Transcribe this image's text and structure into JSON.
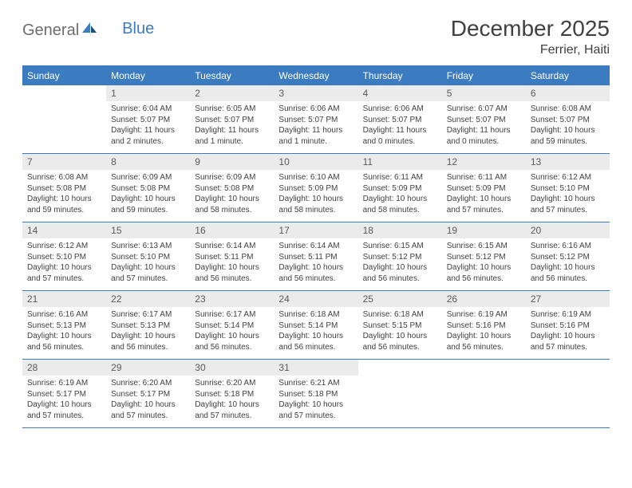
{
  "brand": {
    "general": "General",
    "blue": "Blue"
  },
  "title": "December 2025",
  "location": "Ferrier, Haiti",
  "colors": {
    "header_bg": "#3b7bbf",
    "header_text": "#ffffff",
    "daynum_bg": "#ebebeb",
    "daynum_text": "#5a5a5a",
    "body_text": "#404040",
    "rule": "#3b7bbf",
    "page_bg": "#ffffff",
    "logo_gray": "#6d6d6d",
    "logo_blue": "#3b7bbf"
  },
  "typography": {
    "title_fontsize": 28,
    "location_fontsize": 16,
    "dayheader_fontsize": 12,
    "daynum_fontsize": 12,
    "body_fontsize": 10
  },
  "layout": {
    "columns": 7,
    "rows": 5,
    "first_day_column": 1
  },
  "day_headers": [
    "Sunday",
    "Monday",
    "Tuesday",
    "Wednesday",
    "Thursday",
    "Friday",
    "Saturday"
  ],
  "days": [
    {
      "n": 1,
      "sunrise": "6:04 AM",
      "sunset": "5:07 PM",
      "daylight": "11 hours and 2 minutes."
    },
    {
      "n": 2,
      "sunrise": "6:05 AM",
      "sunset": "5:07 PM",
      "daylight": "11 hours and 1 minute."
    },
    {
      "n": 3,
      "sunrise": "6:06 AM",
      "sunset": "5:07 PM",
      "daylight": "11 hours and 1 minute."
    },
    {
      "n": 4,
      "sunrise": "6:06 AM",
      "sunset": "5:07 PM",
      "daylight": "11 hours and 0 minutes."
    },
    {
      "n": 5,
      "sunrise": "6:07 AM",
      "sunset": "5:07 PM",
      "daylight": "11 hours and 0 minutes."
    },
    {
      "n": 6,
      "sunrise": "6:08 AM",
      "sunset": "5:07 PM",
      "daylight": "10 hours and 59 minutes."
    },
    {
      "n": 7,
      "sunrise": "6:08 AM",
      "sunset": "5:08 PM",
      "daylight": "10 hours and 59 minutes."
    },
    {
      "n": 8,
      "sunrise": "6:09 AM",
      "sunset": "5:08 PM",
      "daylight": "10 hours and 59 minutes."
    },
    {
      "n": 9,
      "sunrise": "6:09 AM",
      "sunset": "5:08 PM",
      "daylight": "10 hours and 58 minutes."
    },
    {
      "n": 10,
      "sunrise": "6:10 AM",
      "sunset": "5:09 PM",
      "daylight": "10 hours and 58 minutes."
    },
    {
      "n": 11,
      "sunrise": "6:11 AM",
      "sunset": "5:09 PM",
      "daylight": "10 hours and 58 minutes."
    },
    {
      "n": 12,
      "sunrise": "6:11 AM",
      "sunset": "5:09 PM",
      "daylight": "10 hours and 57 minutes."
    },
    {
      "n": 13,
      "sunrise": "6:12 AM",
      "sunset": "5:10 PM",
      "daylight": "10 hours and 57 minutes."
    },
    {
      "n": 14,
      "sunrise": "6:12 AM",
      "sunset": "5:10 PM",
      "daylight": "10 hours and 57 minutes."
    },
    {
      "n": 15,
      "sunrise": "6:13 AM",
      "sunset": "5:10 PM",
      "daylight": "10 hours and 57 minutes."
    },
    {
      "n": 16,
      "sunrise": "6:14 AM",
      "sunset": "5:11 PM",
      "daylight": "10 hours and 56 minutes."
    },
    {
      "n": 17,
      "sunrise": "6:14 AM",
      "sunset": "5:11 PM",
      "daylight": "10 hours and 56 minutes."
    },
    {
      "n": 18,
      "sunrise": "6:15 AM",
      "sunset": "5:12 PM",
      "daylight": "10 hours and 56 minutes."
    },
    {
      "n": 19,
      "sunrise": "6:15 AM",
      "sunset": "5:12 PM",
      "daylight": "10 hours and 56 minutes."
    },
    {
      "n": 20,
      "sunrise": "6:16 AM",
      "sunset": "5:12 PM",
      "daylight": "10 hours and 56 minutes."
    },
    {
      "n": 21,
      "sunrise": "6:16 AM",
      "sunset": "5:13 PM",
      "daylight": "10 hours and 56 minutes."
    },
    {
      "n": 22,
      "sunrise": "6:17 AM",
      "sunset": "5:13 PM",
      "daylight": "10 hours and 56 minutes."
    },
    {
      "n": 23,
      "sunrise": "6:17 AM",
      "sunset": "5:14 PM",
      "daylight": "10 hours and 56 minutes."
    },
    {
      "n": 24,
      "sunrise": "6:18 AM",
      "sunset": "5:14 PM",
      "daylight": "10 hours and 56 minutes."
    },
    {
      "n": 25,
      "sunrise": "6:18 AM",
      "sunset": "5:15 PM",
      "daylight": "10 hours and 56 minutes."
    },
    {
      "n": 26,
      "sunrise": "6:19 AM",
      "sunset": "5:16 PM",
      "daylight": "10 hours and 56 minutes."
    },
    {
      "n": 27,
      "sunrise": "6:19 AM",
      "sunset": "5:16 PM",
      "daylight": "10 hours and 57 minutes."
    },
    {
      "n": 28,
      "sunrise": "6:19 AM",
      "sunset": "5:17 PM",
      "daylight": "10 hours and 57 minutes."
    },
    {
      "n": 29,
      "sunrise": "6:20 AM",
      "sunset": "5:17 PM",
      "daylight": "10 hours and 57 minutes."
    },
    {
      "n": 30,
      "sunrise": "6:20 AM",
      "sunset": "5:18 PM",
      "daylight": "10 hours and 57 minutes."
    },
    {
      "n": 31,
      "sunrise": "6:21 AM",
      "sunset": "5:18 PM",
      "daylight": "10 hours and 57 minutes."
    }
  ],
  "labels": {
    "sunrise": "Sunrise:",
    "sunset": "Sunset:",
    "daylight": "Daylight:"
  }
}
